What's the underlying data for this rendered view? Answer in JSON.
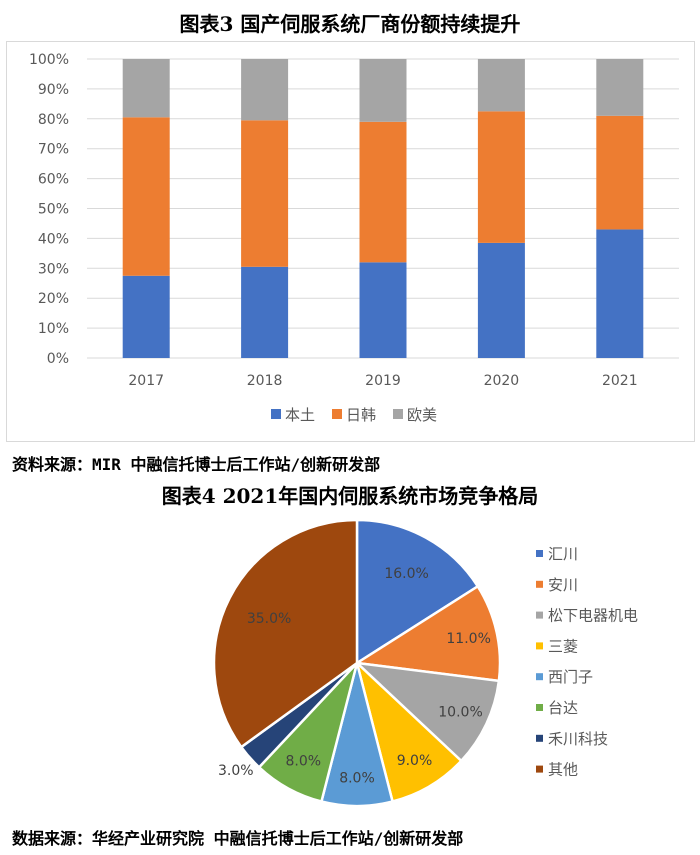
{
  "chart3_title": "图表3 国产伺服系统厂商份额持续提升",
  "chart3_source": "资料来源：MIR 中融信托博士后工作站/创新研发部",
  "chart4_title": "图表4 2021年国内伺服系统市场竞争格局",
  "chart4_source": "数据来源：华经产业研究院 中融信托博士后工作站/创新研发部",
  "chart_data": [
    {
      "type": "bar",
      "stacked": true,
      "categories": [
        "2017",
        "2018",
        "2019",
        "2020",
        "2021"
      ],
      "series": [
        {
          "name": "本土",
          "values": [
            27.5,
            30.5,
            32,
            38.5,
            43
          ],
          "color": "#4472c4"
        },
        {
          "name": "日韩",
          "values": [
            53,
            49,
            47,
            44,
            38
          ],
          "color": "#ed7d31"
        },
        {
          "name": "欧美",
          "values": [
            19.5,
            20.5,
            21,
            17.5,
            19
          ],
          "color": "#a5a5a5"
        }
      ],
      "ylim": [
        0,
        100
      ],
      "yticks": [
        "0%",
        "10%",
        "20%",
        "30%",
        "40%",
        "50%",
        "60%",
        "70%",
        "80%",
        "90%",
        "100%"
      ],
      "grid": true,
      "legend": "bottom"
    },
    {
      "type": "pie",
      "labels": [
        "汇川",
        "安川",
        "松下电器机电",
        "三菱",
        "西门子",
        "台达",
        "禾川科技",
        "其他"
      ],
      "values": [
        16.0,
        11.0,
        10.0,
        9.0,
        8.0,
        8.0,
        3.0,
        35.0
      ],
      "value_labels": [
        "16.0%",
        "11.0%",
        "10.0%",
        "9.0%",
        "8.0%",
        "8.0%",
        "3.0%",
        "35.0%"
      ],
      "colors": [
        "#4472c4",
        "#ed7d31",
        "#a5a5a5",
        "#ffc000",
        "#5b9bd5",
        "#70ad47",
        "#264478",
        "#9e480e"
      ],
      "legend": "right"
    }
  ]
}
